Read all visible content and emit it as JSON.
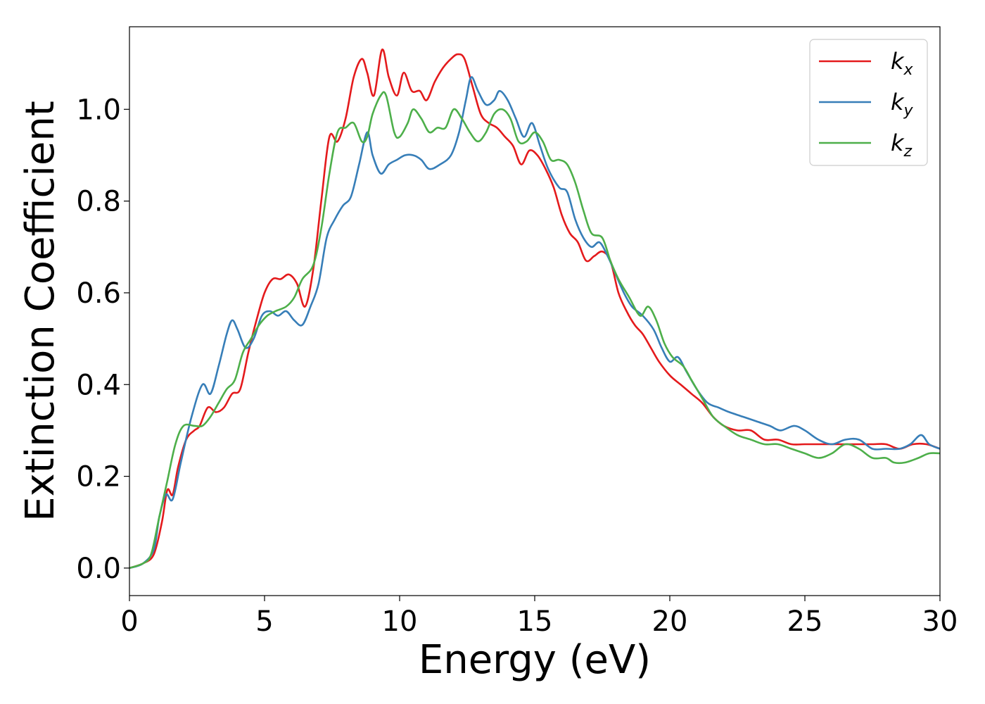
{
  "chart_data": {
    "type": "line",
    "title": "",
    "xlabel": "Energy (eV)",
    "ylabel": "Extinction Coefficient",
    "xlim": [
      0,
      30
    ],
    "ylim": [
      -0.06,
      1.18
    ],
    "xticks": [
      0,
      5,
      10,
      15,
      20,
      25,
      30
    ],
    "xtick_labels": [
      "0",
      "5",
      "10",
      "15",
      "20",
      "25",
      "30"
    ],
    "yticks": [
      0.0,
      0.2,
      0.4,
      0.6,
      0.8,
      1.0
    ],
    "ytick_labels": [
      "0.0",
      "0.2",
      "0.4",
      "0.6",
      "0.8",
      "1.0"
    ],
    "grid": false,
    "legend_position": "top-right",
    "series": [
      {
        "name": "k",
        "subscript": "x",
        "color": "#e41a1c",
        "points": [
          [
            0,
            0
          ],
          [
            0.5,
            0.01
          ],
          [
            0.9,
            0.03
          ],
          [
            1.2,
            0.1
          ],
          [
            1.4,
            0.17
          ],
          [
            1.6,
            0.16
          ],
          [
            1.8,
            0.22
          ],
          [
            2.1,
            0.28
          ],
          [
            2.4,
            0.3
          ],
          [
            2.6,
            0.31
          ],
          [
            2.9,
            0.35
          ],
          [
            3.2,
            0.34
          ],
          [
            3.5,
            0.35
          ],
          [
            3.8,
            0.38
          ],
          [
            4.1,
            0.39
          ],
          [
            4.4,
            0.47
          ],
          [
            4.7,
            0.54
          ],
          [
            5.0,
            0.6
          ],
          [
            5.3,
            0.63
          ],
          [
            5.6,
            0.63
          ],
          [
            5.9,
            0.64
          ],
          [
            6.2,
            0.62
          ],
          [
            6.5,
            0.57
          ],
          [
            6.8,
            0.65
          ],
          [
            7.1,
            0.8
          ],
          [
            7.4,
            0.94
          ],
          [
            7.7,
            0.93
          ],
          [
            8.0,
            0.98
          ],
          [
            8.3,
            1.07
          ],
          [
            8.6,
            1.11
          ],
          [
            8.8,
            1.08
          ],
          [
            9.05,
            1.03
          ],
          [
            9.35,
            1.13
          ],
          [
            9.6,
            1.07
          ],
          [
            9.9,
            1.03
          ],
          [
            10.15,
            1.08
          ],
          [
            10.45,
            1.04
          ],
          [
            10.75,
            1.04
          ],
          [
            11.0,
            1.02
          ],
          [
            11.3,
            1.06
          ],
          [
            11.6,
            1.09
          ],
          [
            11.9,
            1.11
          ],
          [
            12.15,
            1.12
          ],
          [
            12.4,
            1.11
          ],
          [
            12.7,
            1.05
          ],
          [
            13.0,
            0.99
          ],
          [
            13.3,
            0.97
          ],
          [
            13.6,
            0.96
          ],
          [
            13.9,
            0.94
          ],
          [
            14.2,
            0.92
          ],
          [
            14.5,
            0.88
          ],
          [
            14.8,
            0.91
          ],
          [
            15.1,
            0.9
          ],
          [
            15.4,
            0.87
          ],
          [
            15.7,
            0.83
          ],
          [
            16.0,
            0.77
          ],
          [
            16.3,
            0.73
          ],
          [
            16.6,
            0.71
          ],
          [
            16.9,
            0.67
          ],
          [
            17.2,
            0.68
          ],
          [
            17.5,
            0.69
          ],
          [
            17.8,
            0.67
          ],
          [
            18.1,
            0.6
          ],
          [
            18.4,
            0.56
          ],
          [
            18.7,
            0.53
          ],
          [
            19.0,
            0.51
          ],
          [
            19.3,
            0.48
          ],
          [
            19.6,
            0.45
          ],
          [
            20.0,
            0.42
          ],
          [
            20.4,
            0.4
          ],
          [
            20.8,
            0.38
          ],
          [
            21.2,
            0.36
          ],
          [
            21.6,
            0.33
          ],
          [
            22.0,
            0.31
          ],
          [
            22.5,
            0.3
          ],
          [
            23.0,
            0.3
          ],
          [
            23.5,
            0.28
          ],
          [
            24.0,
            0.28
          ],
          [
            24.5,
            0.27
          ],
          [
            25.0,
            0.27
          ],
          [
            25.5,
            0.27
          ],
          [
            26.0,
            0.27
          ],
          [
            26.5,
            0.27
          ],
          [
            27.0,
            0.27
          ],
          [
            27.5,
            0.27
          ],
          [
            28.0,
            0.27
          ],
          [
            28.5,
            0.26
          ],
          [
            29.0,
            0.27
          ],
          [
            29.5,
            0.27
          ],
          [
            30.0,
            0.26
          ]
        ]
      },
      {
        "name": "k",
        "subscript": "y",
        "color": "#377eb8",
        "points": [
          [
            0,
            0
          ],
          [
            0.5,
            0.01
          ],
          [
            0.9,
            0.04
          ],
          [
            1.1,
            0.11
          ],
          [
            1.35,
            0.16
          ],
          [
            1.6,
            0.15
          ],
          [
            1.9,
            0.23
          ],
          [
            2.3,
            0.33
          ],
          [
            2.7,
            0.4
          ],
          [
            3.0,
            0.38
          ],
          [
            3.3,
            0.44
          ],
          [
            3.6,
            0.51
          ],
          [
            3.8,
            0.54
          ],
          [
            4.0,
            0.52
          ],
          [
            4.3,
            0.48
          ],
          [
            4.6,
            0.5
          ],
          [
            4.9,
            0.55
          ],
          [
            5.2,
            0.56
          ],
          [
            5.5,
            0.55
          ],
          [
            5.8,
            0.56
          ],
          [
            6.1,
            0.54
          ],
          [
            6.4,
            0.53
          ],
          [
            6.7,
            0.57
          ],
          [
            7.0,
            0.62
          ],
          [
            7.3,
            0.72
          ],
          [
            7.6,
            0.76
          ],
          [
            7.9,
            0.79
          ],
          [
            8.2,
            0.81
          ],
          [
            8.5,
            0.88
          ],
          [
            8.8,
            0.95
          ],
          [
            9.0,
            0.9
          ],
          [
            9.3,
            0.86
          ],
          [
            9.6,
            0.88
          ],
          [
            9.9,
            0.89
          ],
          [
            10.2,
            0.9
          ],
          [
            10.5,
            0.9
          ],
          [
            10.8,
            0.89
          ],
          [
            11.1,
            0.87
          ],
          [
            11.5,
            0.88
          ],
          [
            11.9,
            0.9
          ],
          [
            12.2,
            0.95
          ],
          [
            12.45,
            1.02
          ],
          [
            12.65,
            1.07
          ],
          [
            12.9,
            1.04
          ],
          [
            13.2,
            1.01
          ],
          [
            13.5,
            1.02
          ],
          [
            13.7,
            1.04
          ],
          [
            14.0,
            1.02
          ],
          [
            14.3,
            0.98
          ],
          [
            14.6,
            0.94
          ],
          [
            14.9,
            0.97
          ],
          [
            15.2,
            0.92
          ],
          [
            15.5,
            0.87
          ],
          [
            15.9,
            0.83
          ],
          [
            16.2,
            0.82
          ],
          [
            16.5,
            0.76
          ],
          [
            16.8,
            0.72
          ],
          [
            17.1,
            0.7
          ],
          [
            17.4,
            0.71
          ],
          [
            17.7,
            0.68
          ],
          [
            18.0,
            0.64
          ],
          [
            18.3,
            0.6
          ],
          [
            18.6,
            0.57
          ],
          [
            19.0,
            0.55
          ],
          [
            19.4,
            0.52
          ],
          [
            19.7,
            0.48
          ],
          [
            20.0,
            0.45
          ],
          [
            20.3,
            0.46
          ],
          [
            20.6,
            0.43
          ],
          [
            21.0,
            0.39
          ],
          [
            21.4,
            0.36
          ],
          [
            21.8,
            0.35
          ],
          [
            22.2,
            0.34
          ],
          [
            22.7,
            0.33
          ],
          [
            23.2,
            0.32
          ],
          [
            23.7,
            0.31
          ],
          [
            24.1,
            0.3
          ],
          [
            24.6,
            0.31
          ],
          [
            25.0,
            0.3
          ],
          [
            25.5,
            0.28
          ],
          [
            26.0,
            0.27
          ],
          [
            26.5,
            0.28
          ],
          [
            27.0,
            0.28
          ],
          [
            27.5,
            0.26
          ],
          [
            28.0,
            0.26
          ],
          [
            28.5,
            0.26
          ],
          [
            28.9,
            0.27
          ],
          [
            29.3,
            0.29
          ],
          [
            29.6,
            0.27
          ],
          [
            30.0,
            0.26
          ]
        ]
      },
      {
        "name": "k",
        "subscript": "z",
        "color": "#4daf4a",
        "points": [
          [
            0,
            0
          ],
          [
            0.5,
            0.01
          ],
          [
            0.8,
            0.03
          ],
          [
            1.1,
            0.11
          ],
          [
            1.4,
            0.19
          ],
          [
            1.7,
            0.27
          ],
          [
            2.0,
            0.31
          ],
          [
            2.4,
            0.31
          ],
          [
            2.7,
            0.31
          ],
          [
            3.0,
            0.33
          ],
          [
            3.3,
            0.36
          ],
          [
            3.6,
            0.39
          ],
          [
            3.9,
            0.41
          ],
          [
            4.2,
            0.47
          ],
          [
            4.5,
            0.5
          ],
          [
            4.8,
            0.53
          ],
          [
            5.1,
            0.55
          ],
          [
            5.4,
            0.56
          ],
          [
            5.8,
            0.57
          ],
          [
            6.1,
            0.59
          ],
          [
            6.4,
            0.63
          ],
          [
            6.8,
            0.66
          ],
          [
            7.1,
            0.74
          ],
          [
            7.4,
            0.86
          ],
          [
            7.7,
            0.95
          ],
          [
            8.0,
            0.96
          ],
          [
            8.3,
            0.97
          ],
          [
            8.6,
            0.93
          ],
          [
            8.8,
            0.94
          ],
          [
            9.0,
            0.99
          ],
          [
            9.3,
            1.03
          ],
          [
            9.5,
            1.03
          ],
          [
            9.8,
            0.95
          ],
          [
            10.0,
            0.94
          ],
          [
            10.3,
            0.97
          ],
          [
            10.5,
            1.0
          ],
          [
            10.8,
            0.98
          ],
          [
            11.1,
            0.95
          ],
          [
            11.4,
            0.96
          ],
          [
            11.7,
            0.96
          ],
          [
            12.0,
            1.0
          ],
          [
            12.3,
            0.98
          ],
          [
            12.6,
            0.95
          ],
          [
            12.9,
            0.93
          ],
          [
            13.2,
            0.95
          ],
          [
            13.5,
            0.99
          ],
          [
            13.8,
            1.0
          ],
          [
            14.1,
            0.98
          ],
          [
            14.4,
            0.93
          ],
          [
            14.7,
            0.93
          ],
          [
            15.0,
            0.95
          ],
          [
            15.3,
            0.93
          ],
          [
            15.6,
            0.89
          ],
          [
            15.9,
            0.89
          ],
          [
            16.2,
            0.88
          ],
          [
            16.5,
            0.84
          ],
          [
            16.8,
            0.78
          ],
          [
            17.1,
            0.73
          ],
          [
            17.5,
            0.72
          ],
          [
            17.8,
            0.67
          ],
          [
            18.1,
            0.63
          ],
          [
            18.5,
            0.59
          ],
          [
            18.9,
            0.55
          ],
          [
            19.2,
            0.57
          ],
          [
            19.5,
            0.54
          ],
          [
            19.8,
            0.49
          ],
          [
            20.1,
            0.46
          ],
          [
            20.5,
            0.44
          ],
          [
            20.8,
            0.41
          ],
          [
            21.2,
            0.37
          ],
          [
            21.6,
            0.33
          ],
          [
            22.0,
            0.31
          ],
          [
            22.5,
            0.29
          ],
          [
            23.0,
            0.28
          ],
          [
            23.5,
            0.27
          ],
          [
            24.0,
            0.27
          ],
          [
            24.5,
            0.26
          ],
          [
            25.0,
            0.25
          ],
          [
            25.5,
            0.24
          ],
          [
            26.0,
            0.25
          ],
          [
            26.5,
            0.27
          ],
          [
            27.0,
            0.26
          ],
          [
            27.5,
            0.24
          ],
          [
            28.0,
            0.24
          ],
          [
            28.3,
            0.23
          ],
          [
            28.7,
            0.23
          ],
          [
            29.2,
            0.24
          ],
          [
            29.6,
            0.25
          ],
          [
            30.0,
            0.25
          ]
        ]
      }
    ]
  }
}
